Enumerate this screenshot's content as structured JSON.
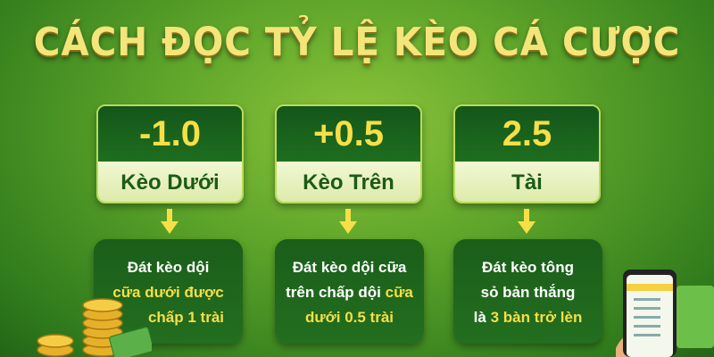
{
  "title": "CÁCH ĐỌC TỶ LỆ KÈO CÁ CƯỢC",
  "colors": {
    "accent_yellow": "#f6df47",
    "dark_green": "#1b5e1a",
    "light_panel": "#e8f3c0"
  },
  "cards": [
    {
      "value": "-1.0",
      "label": "Kèo Dưới",
      "lines": [
        {
          "w": "Đát kèo dội",
          "y": ""
        },
        {
          "w": "",
          "y": "cữa dưới được"
        },
        {
          "w": "",
          "y": "chấp 1 trài"
        }
      ]
    },
    {
      "value": "+0.5",
      "label": "Kèo Trên",
      "lines": [
        {
          "w": "Đát kèo dội cữa",
          "y": ""
        },
        {
          "w": "trên chấp dội ",
          "y": "cữa"
        },
        {
          "w": "",
          "y": "dưới 0.5 trài"
        }
      ]
    },
    {
      "value": "2.5",
      "label": "Tài",
      "lines": [
        {
          "w": "Đát kèo tông",
          "y": ""
        },
        {
          "w": "sỏ bản thắng",
          "y": ""
        },
        {
          "w": "là ",
          "y": "3 bàn trở lèn"
        }
      ]
    }
  ],
  "decorations": [
    "gold-coins-icon",
    "cash-icon",
    "smartphone-icon"
  ]
}
